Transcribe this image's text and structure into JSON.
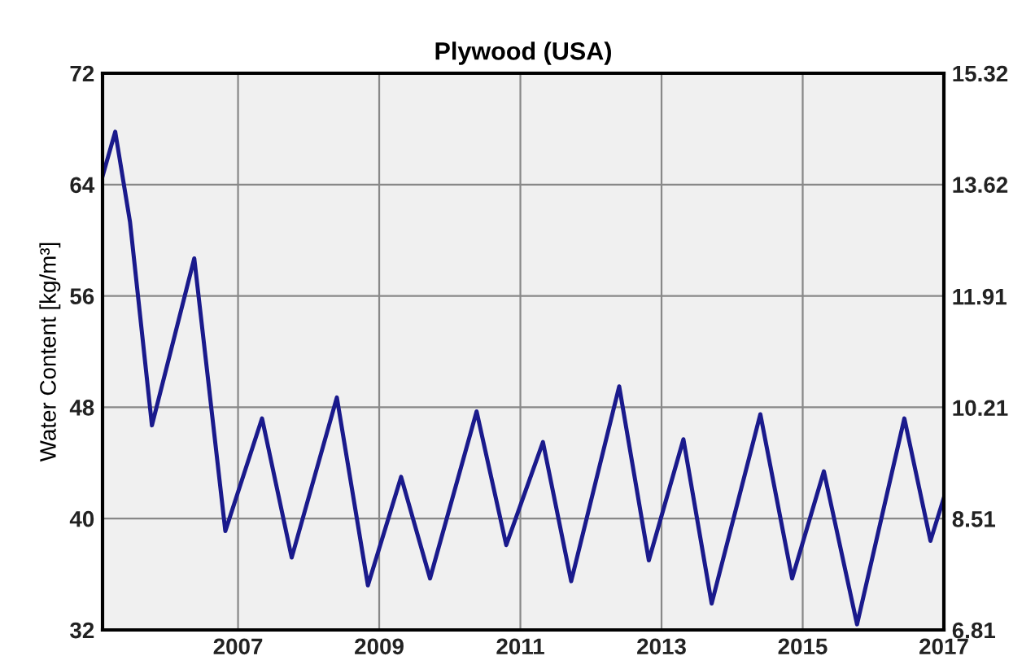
{
  "chart_data": {
    "type": "line",
    "title": "Plywood (USA)",
    "ylabel": "Water Content [kg/m³]",
    "x": [
      2005.08,
      2005.26,
      2005.47,
      2005.78,
      2006.38,
      2006.82,
      2007.34,
      2007.76,
      2008.4,
      2008.84,
      2009.31,
      2009.72,
      2010.38,
      2010.8,
      2011.32,
      2011.72,
      2012.4,
      2012.82,
      2013.31,
      2013.71,
      2014.4,
      2014.85,
      2015.3,
      2015.77,
      2016.44,
      2016.81,
      2017.0
    ],
    "series": [
      {
        "color": "#1a1a8c",
        "values": [
          64.6,
          67.8,
          61.3,
          46.7,
          58.7,
          39.1,
          47.2,
          37.2,
          48.7,
          35.2,
          43.0,
          35.7,
          47.7,
          38.1,
          45.5,
          35.5,
          49.5,
          37.0,
          45.7,
          33.9,
          47.5,
          35.7,
          43.4,
          32.4,
          47.2,
          38.4,
          41.5
        ]
      }
    ],
    "xlim": [
      2005.08,
      2017
    ],
    "xticks": [
      2007,
      2009,
      2011,
      2013,
      2015,
      2017
    ],
    "ylim": [
      32,
      72
    ],
    "yticks": [
      32,
      40,
      48,
      56,
      64,
      72
    ],
    "y2lim": [
      6.81,
      15.32
    ],
    "y2ticks": [
      6.81,
      8.51,
      10.21,
      11.91,
      13.62,
      15.32
    ],
    "grid": true,
    "legend": false,
    "marker": "none",
    "line_style": "solid"
  }
}
